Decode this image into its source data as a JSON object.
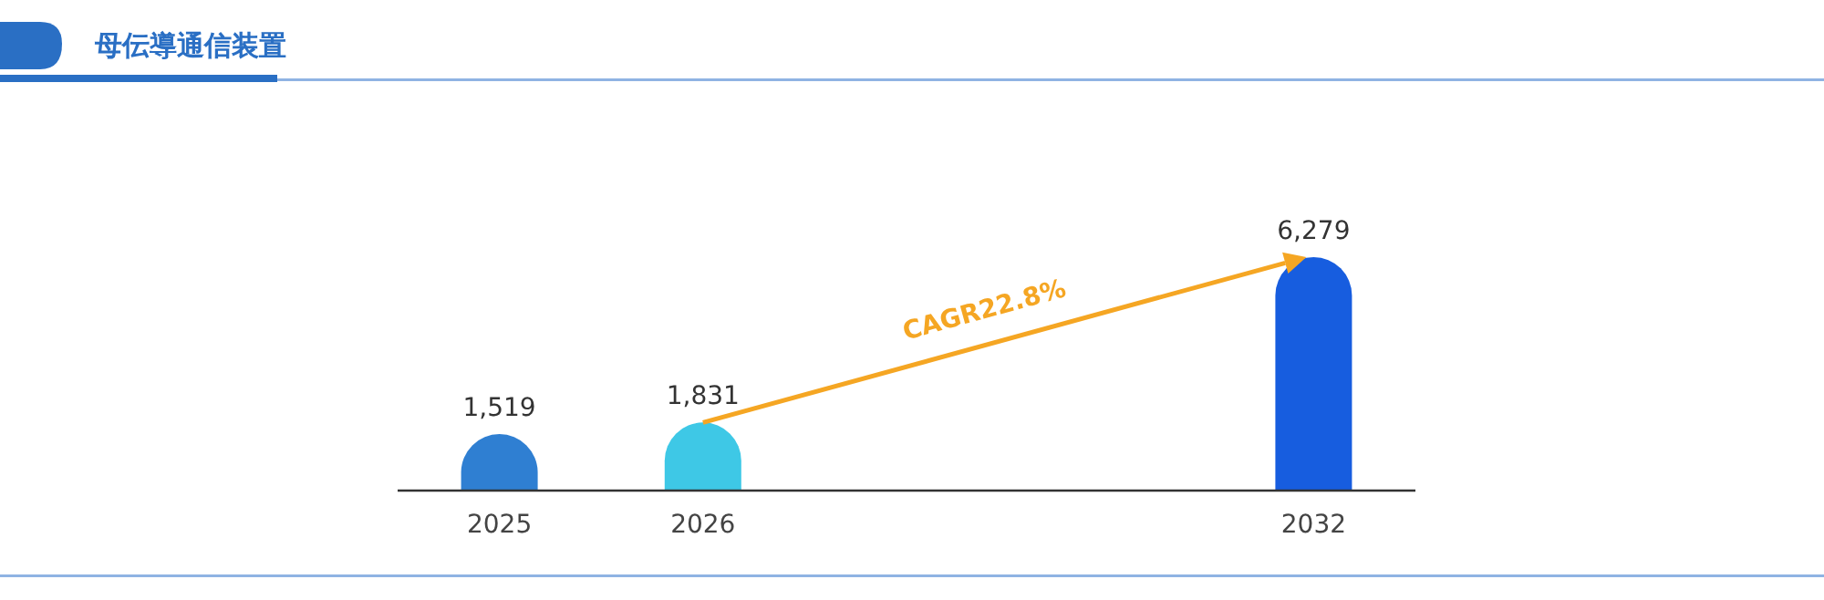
{
  "chart_data": {
    "type": "bar",
    "title": "母伝導通信装置",
    "categories": [
      "2025",
      "2026",
      null,
      null,
      "2032"
    ],
    "values": [
      1519,
      1831,
      null,
      null,
      6279
    ],
    "colors": [
      "#2f7fd2",
      "#3ec8e6",
      null,
      null,
      "#175ddf"
    ],
    "value_labels": [
      "1,519",
      "1,831",
      null,
      null,
      "6,279"
    ],
    "annotations": [
      "CAGR22.8%"
    ]
  }
}
